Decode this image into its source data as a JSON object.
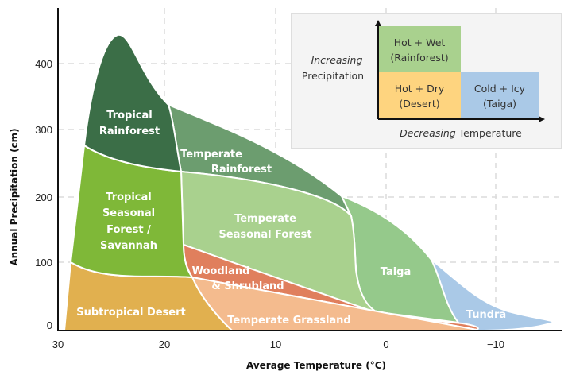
{
  "axes": {
    "x_label": "Average Temperature (°C)",
    "y_label": "Annual Precipitation (cm)",
    "x_ticks": [
      "30",
      "20",
      "10",
      "0",
      "−10"
    ],
    "y_ticks": [
      "0",
      "100",
      "200",
      "300",
      "400"
    ]
  },
  "biomes": {
    "tropical_rainforest": {
      "line1": "Tropical",
      "line2": "Rainforest",
      "color": "#3b6e47"
    },
    "temperate_rainforest": {
      "line1": "Temperate",
      "line2": "Rainforest",
      "color": "#6c9d6f"
    },
    "tropical_seasonal": {
      "line1": "Tropical",
      "line2": "Seasonal",
      "line3": "Forest /",
      "line4": "Savannah",
      "color": "#7fb838"
    },
    "temperate_seasonal": {
      "line1": "Temperate",
      "line2": "Seasonal Forest",
      "color": "#a9d18e"
    },
    "woodland": {
      "line1": "Woodland",
      "line2": "& Shrubland",
      "color": "#e07f5d"
    },
    "temperate_grassland": {
      "label": "Temperate Grassland",
      "color": "#f4bb8e"
    },
    "subtropical_desert": {
      "label": "Subtropical Desert",
      "color": "#e1b04f"
    },
    "taiga": {
      "label": "Taiga",
      "color": "#95c98b"
    },
    "tundra": {
      "label": "Tundra",
      "color": "#aac9e7"
    }
  },
  "legend": {
    "y_axis_line1": "Increasing",
    "y_axis_line2": "Precipitation",
    "x_axis_italic": "Decreasing",
    "x_axis_rest": " Temperature",
    "hot_wet": {
      "line1": "Hot + Wet",
      "line2": "(Rainforest)",
      "color": "#a9d18e"
    },
    "hot_dry": {
      "line1": "Hot + Dry",
      "line2": "(Desert)",
      "color": "#fed47f"
    },
    "cold_icy": {
      "line1": "Cold + Icy",
      "line2": "(Taiga)",
      "color": "#aac9e7"
    }
  }
}
